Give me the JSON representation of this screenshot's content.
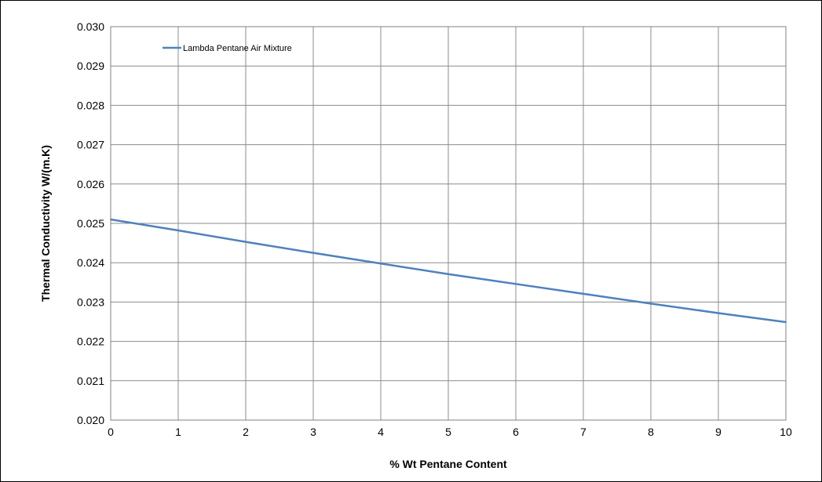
{
  "chart_data": {
    "type": "line",
    "title": "",
    "xlabel": "% Wt Pentane Content",
    "ylabel": "Thermal Conductivity W/(m.K)",
    "xlim": [
      0,
      10
    ],
    "ylim": [
      0.02,
      0.03
    ],
    "x_ticks": [
      "0",
      "1",
      "2",
      "3",
      "4",
      "5",
      "6",
      "7",
      "8",
      "9",
      "10"
    ],
    "y_ticks": [
      "0.020",
      "0.021",
      "0.022",
      "0.023",
      "0.024",
      "0.025",
      "0.026",
      "0.027",
      "0.028",
      "0.029",
      "0.030"
    ],
    "grid": true,
    "legend_position": "top-left",
    "series": [
      {
        "name": "Lambda Pentane Air Mixture",
        "color": "#4F81BD",
        "x": [
          0,
          1,
          2,
          3,
          4,
          5,
          6,
          7,
          8,
          9,
          10
        ],
        "y": [
          0.0251,
          0.02482,
          0.02453,
          0.02425,
          0.02398,
          0.02371,
          0.02346,
          0.02321,
          0.02296,
          0.02272,
          0.02249
        ]
      }
    ]
  }
}
